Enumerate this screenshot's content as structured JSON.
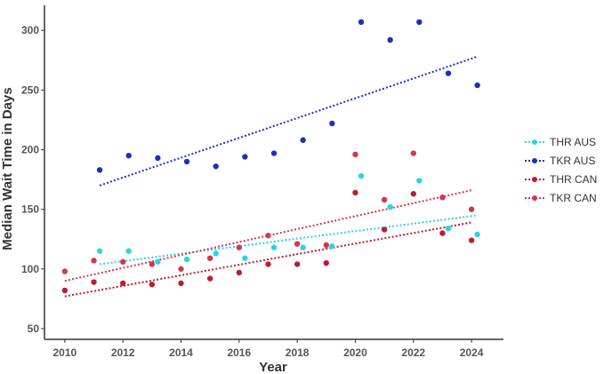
{
  "chart_data": {
    "type": "scatter",
    "xlabel": "Year",
    "ylabel": "Median Wait Time in Days",
    "xlim": [
      2009.3,
      2025.1
    ],
    "ylim": [
      41,
      321
    ],
    "x_ticks": [
      "2010",
      "2012",
      "2014",
      "2016",
      "2018",
      "2020",
      "2022",
      "2024"
    ],
    "y_ticks": [
      "50",
      "100",
      "150",
      "200",
      "250",
      "300"
    ],
    "grid": false,
    "legend_position": "right",
    "series": [
      {
        "name": "THR AUS",
        "color": "#2ad4e8",
        "points": [
          [
            2011.2,
            115
          ],
          [
            2012.2,
            115
          ],
          [
            2013.2,
            106
          ],
          [
            2014.2,
            108
          ],
          [
            2015.2,
            113
          ],
          [
            2016.2,
            109
          ],
          [
            2017.2,
            118
          ],
          [
            2018.2,
            118
          ],
          [
            2019.2,
            119
          ],
          [
            2020.2,
            178
          ],
          [
            2021.2,
            152
          ],
          [
            2022.2,
            174
          ],
          [
            2023.2,
            134
          ],
          [
            2024.2,
            129
          ]
        ],
        "trend": [
          [
            2011.2,
            104
          ],
          [
            2024.2,
            145
          ]
        ]
      },
      {
        "name": "TKR AUS",
        "color": "#1e2fbf",
        "points": [
          [
            2011.2,
            183
          ],
          [
            2012.2,
            195
          ],
          [
            2013.2,
            193
          ],
          [
            2014.2,
            190
          ],
          [
            2015.2,
            186
          ],
          [
            2016.2,
            194
          ],
          [
            2017.2,
            197
          ],
          [
            2018.2,
            208
          ],
          [
            2019.2,
            222
          ],
          [
            2020.2,
            307
          ],
          [
            2021.2,
            292
          ],
          [
            2022.2,
            307
          ],
          [
            2023.2,
            264
          ],
          [
            2024.2,
            254
          ]
        ],
        "trend": [
          [
            2011.2,
            170
          ],
          [
            2024.2,
            278
          ]
        ]
      },
      {
        "name": "THR CAN",
        "color": "#c01a36",
        "points": [
          [
            2010,
            82
          ],
          [
            2011,
            89
          ],
          [
            2012,
            88
          ],
          [
            2013,
            87
          ],
          [
            2014,
            88
          ],
          [
            2015,
            92
          ],
          [
            2016,
            97
          ],
          [
            2017,
            104
          ],
          [
            2018,
            104
          ],
          [
            2019,
            105
          ],
          [
            2020,
            164
          ],
          [
            2021,
            133
          ],
          [
            2022,
            163
          ],
          [
            2023,
            130
          ],
          [
            2024,
            124
          ]
        ],
        "trend": [
          [
            2010,
            77
          ],
          [
            2024,
            139
          ]
        ]
      },
      {
        "name": "TKR CAN",
        "color": "#d4364e",
        "points": [
          [
            2010,
            98
          ],
          [
            2011,
            107
          ],
          [
            2012,
            106
          ],
          [
            2013,
            104
          ],
          [
            2014,
            100
          ],
          [
            2015,
            109
          ],
          [
            2016,
            118
          ],
          [
            2017,
            128
          ],
          [
            2018,
            121
          ],
          [
            2019,
            120
          ],
          [
            2020,
            196
          ],
          [
            2021,
            158
          ],
          [
            2022,
            197
          ],
          [
            2023,
            160
          ],
          [
            2024,
            150
          ]
        ],
        "trend": [
          [
            2010,
            90
          ],
          [
            2024,
            166
          ]
        ]
      }
    ]
  }
}
